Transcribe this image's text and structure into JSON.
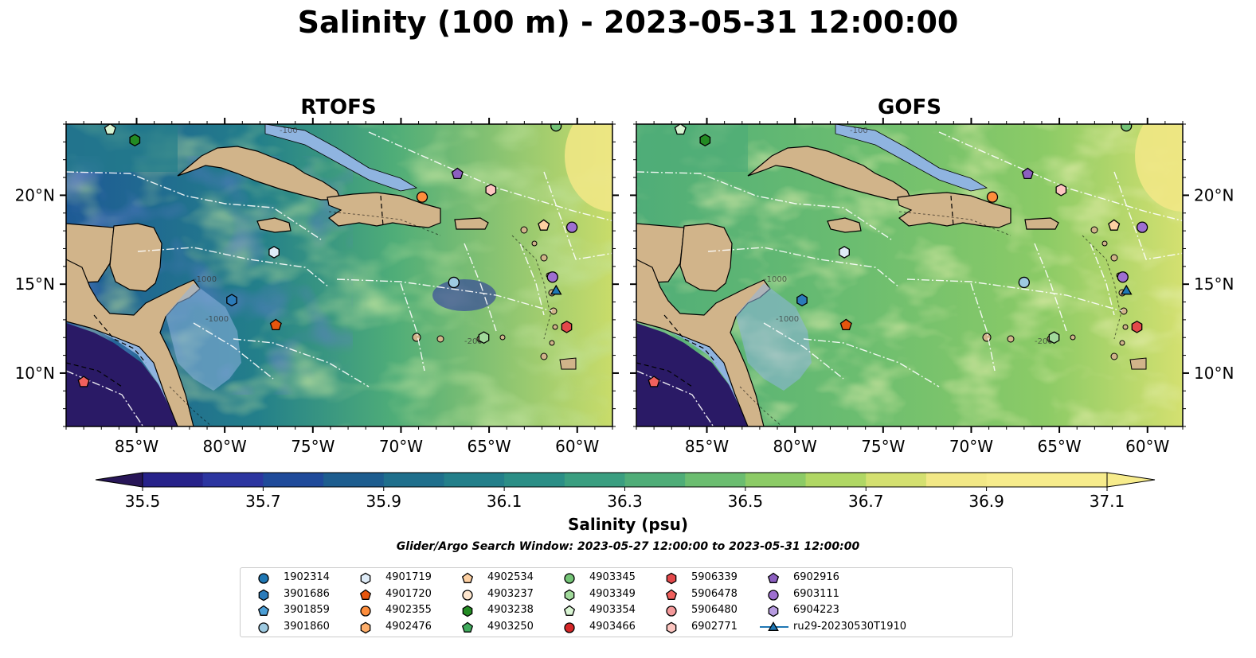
{
  "title": "Salinity (100 m) - 2023-05-31 12:00:00",
  "panels": [
    {
      "title": "RTOFS",
      "model": "rtofs"
    },
    {
      "title": "GOFS",
      "model": "gofs"
    }
  ],
  "axes": {
    "lon_ticks": [
      "85°W",
      "80°W",
      "75°W",
      "70°W",
      "65°W",
      "60°W"
    ],
    "lat_ticks": [
      "20°N",
      "15°N",
      "10°N"
    ],
    "contour_labels": [
      "-1000",
      "-100",
      "-200"
    ]
  },
  "colorbar": {
    "label": "Salinity (psu)",
    "ticks": [
      "35.5",
      "35.7",
      "35.9",
      "36.1",
      "36.3",
      "36.5",
      "36.7",
      "36.9",
      "37.1"
    ],
    "min": 35.5,
    "max": 37.1,
    "step": 0.1,
    "extend": "both",
    "colors": [
      "#281658",
      "#27228a",
      "#2c35a0",
      "#1f4a9a",
      "#1d5d8f",
      "#1f6f8c",
      "#237f8a",
      "#2b8e86",
      "#3a9e80",
      "#4fad78",
      "#6bbd70",
      "#8ccb66",
      "#b0d764",
      "#d4e070",
      "#f2e886",
      "#f7ec8c"
    ]
  },
  "search_window": "Glider/Argo Search Window: 2023-05-27 12:00:00 to 2023-05-31 12:00:00",
  "legend": [
    {
      "label": "1902314",
      "marker": "circle",
      "color": "#1f77b4"
    },
    {
      "label": "3901686",
      "marker": "hexagon",
      "color": "#2b7bba"
    },
    {
      "label": "3901859",
      "marker": "pentagon",
      "color": "#4c9fd6"
    },
    {
      "label": "3901860",
      "marker": "circle",
      "color": "#9ecae1"
    },
    {
      "label": "4901719",
      "marker": "hexagon",
      "color": "#deebf7"
    },
    {
      "label": "4901720",
      "marker": "pentagon",
      "color": "#e6550d"
    },
    {
      "label": "4902355",
      "marker": "circle",
      "color": "#fd8d3c"
    },
    {
      "label": "4902476",
      "marker": "hexagon",
      "color": "#fdae6b"
    },
    {
      "label": "4902534",
      "marker": "pentagon",
      "color": "#fdd0a2"
    },
    {
      "label": "4903237",
      "marker": "circle",
      "color": "#fee6ce"
    },
    {
      "label": "4903238",
      "marker": "hexagon",
      "color": "#238b23"
    },
    {
      "label": "4903250",
      "marker": "pentagon",
      "color": "#41ab5d"
    },
    {
      "label": "4903345",
      "marker": "circle",
      "color": "#74c476"
    },
    {
      "label": "4903349",
      "marker": "hexagon",
      "color": "#a1d99b"
    },
    {
      "label": "4903354",
      "marker": "pentagon",
      "color": "#d9f5d3"
    },
    {
      "label": "4903466",
      "marker": "circle",
      "color": "#d62728"
    },
    {
      "label": "5906339",
      "marker": "hexagon",
      "color": "#e3484a"
    },
    {
      "label": "5906478",
      "marker": "pentagon",
      "color": "#f0605d"
    },
    {
      "label": "5906480",
      "marker": "circle",
      "color": "#f4999a"
    },
    {
      "label": "6902771",
      "marker": "hexagon",
      "color": "#fcc5c0"
    },
    {
      "label": "6902916",
      "marker": "pentagon",
      "color": "#8c5fc0"
    },
    {
      "label": "6903111",
      "marker": "circle",
      "color": "#9e6fd0"
    },
    {
      "label": "6904223",
      "marker": "hexagon",
      "color": "#b79be0"
    },
    {
      "label": "ru29-20230530T1910",
      "marker": "triangle-line",
      "color": "#1f77b4"
    }
  ],
  "observations": [
    {
      "id": "4903354",
      "marker": "pentagon",
      "color": "#d9f5d3",
      "lon": -86.5,
      "lat": 23.7
    },
    {
      "id": "4903238",
      "marker": "hexagon",
      "color": "#238b23",
      "lon": -85.1,
      "lat": 23.1
    },
    {
      "id": "4903345",
      "marker": "circle",
      "color": "#74c476",
      "lon": -61.2,
      "lat": 23.9
    },
    {
      "id": "6902916",
      "marker": "pentagon",
      "color": "#8c5fc0",
      "lon": -66.8,
      "lat": 21.2
    },
    {
      "id": "4902355",
      "marker": "circle",
      "color": "#fd8d3c",
      "lon": -68.8,
      "lat": 19.9
    },
    {
      "id": "6902771",
      "marker": "hexagon",
      "color": "#fcc5c0",
      "lon": -64.9,
      "lat": 20.3
    },
    {
      "id": "4902534",
      "marker": "pentagon",
      "color": "#fdd0a2",
      "lon": -61.9,
      "lat": 18.3
    },
    {
      "id": "6903111",
      "marker": "circle",
      "color": "#9e6fd0",
      "lon": -60.3,
      "lat": 18.2
    },
    {
      "id": "4901719",
      "marker": "hexagon",
      "color": "#deebf7",
      "lon": -77.2,
      "lat": 16.8
    },
    {
      "id": "3901860",
      "marker": "circle",
      "color": "#9ecae1",
      "lon": -67.0,
      "lat": 15.1
    },
    {
      "id": "6903111",
      "marker": "circle",
      "color": "#9e6fd0",
      "lon": -61.4,
      "lat": 15.4
    },
    {
      "id": "ru29-20230530T1910",
      "marker": "triangle",
      "color": "#1f77b4",
      "lon": -61.2,
      "lat": 14.6
    },
    {
      "id": "3901686",
      "marker": "hexagon",
      "color": "#2b7bba",
      "lon": -79.6,
      "lat": 14.1
    },
    {
      "id": "4901720",
      "marker": "pentagon",
      "color": "#e6550d",
      "lon": -77.1,
      "lat": 12.7
    },
    {
      "id": "5906339",
      "marker": "hexagon",
      "color": "#e3484a",
      "lon": -60.6,
      "lat": 12.6
    },
    {
      "id": "4903349",
      "marker": "hexagon",
      "color": "#a1d99b",
      "lon": -65.3,
      "lat": 12.0
    },
    {
      "id": "5906478",
      "marker": "pentagon",
      "color": "#f0605d",
      "lon": -88.0,
      "lat": 9.5
    }
  ]
}
